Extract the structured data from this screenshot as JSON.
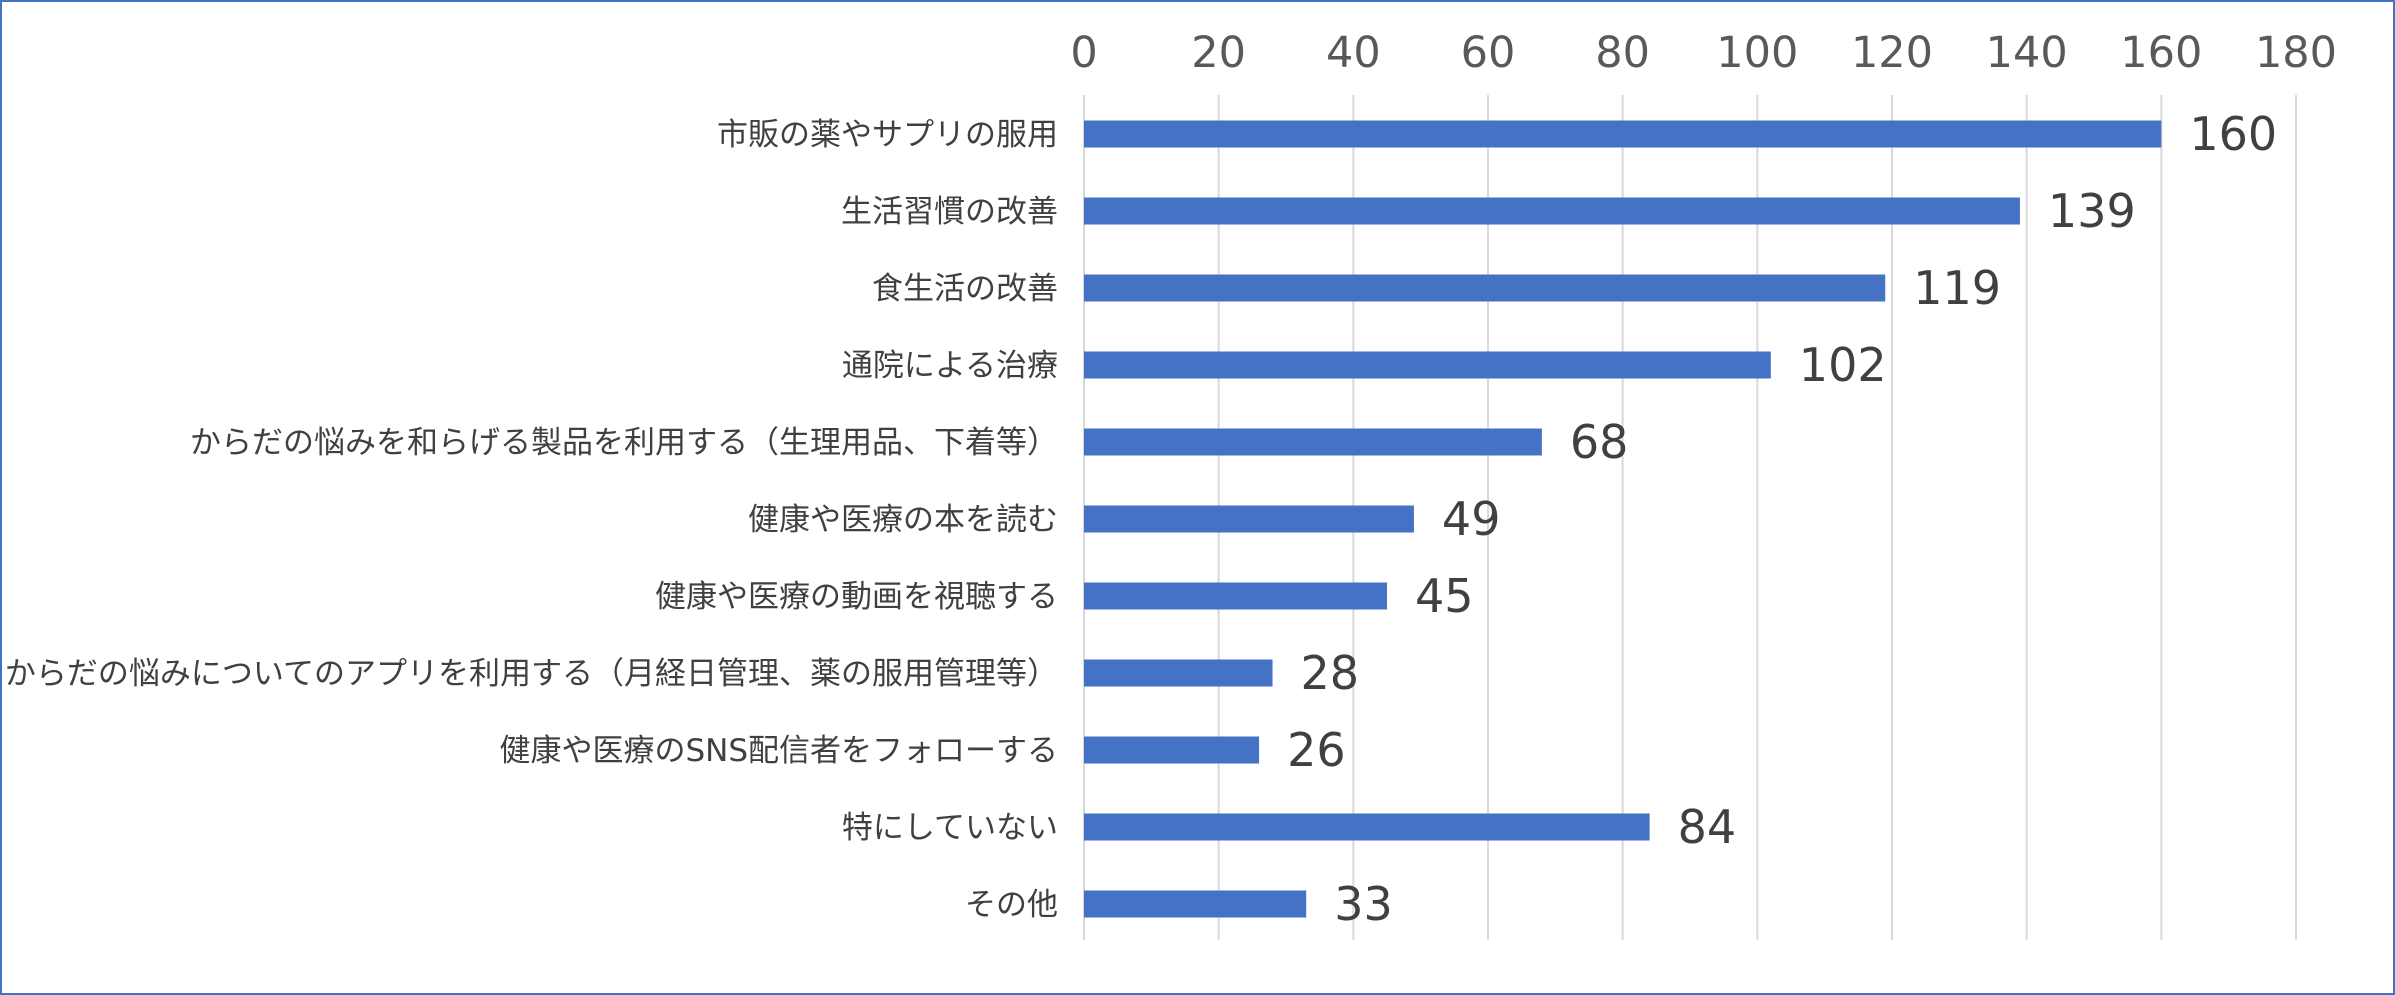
{
  "chart_data": {
    "type": "bar",
    "orientation": "horizontal",
    "title": "",
    "xlabel": "",
    "ylabel": "",
    "categories": [
      "市販の薬やサプリの服用",
      "生活習慣の改善",
      "食生活の改善",
      "通院による治療",
      "からだの悩みを和らげる製品を利用する（生理用品、下着等）",
      "健康や医療の本を読む",
      "健康や医療の動画を視聴する",
      "からだの悩みについてのアプリを利用する（月経日管理、薬の服用管理等）",
      "健康や医療のSNS配信者をフォローする",
      "特にしていない",
      "その他"
    ],
    "values": [
      160,
      139,
      119,
      102,
      68,
      49,
      45,
      28,
      26,
      84,
      33
    ],
    "value_labels": [
      "160",
      "139",
      "119",
      "102",
      "68",
      "49",
      "45",
      "28",
      "26",
      "84",
      "33"
    ],
    "xlim": [
      0,
      180
    ],
    "ticks": [
      "0",
      "20",
      "40",
      "60",
      "80",
      "100",
      "120",
      "140",
      "160",
      "180"
    ],
    "tick_values": [
      0,
      20,
      40,
      60,
      80,
      100,
      120,
      140,
      160,
      180
    ],
    "axis_position": "top",
    "grid": true,
    "legend": "none",
    "colors": {
      "bar": "#4472c4",
      "grid": "#d9d9d9",
      "border": "#4472c4"
    }
  }
}
